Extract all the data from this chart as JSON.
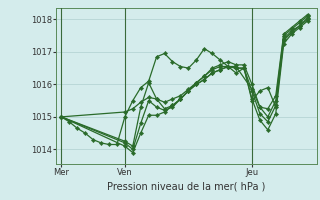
{
  "title": "Pression niveau de la mer( hPa )",
  "ylabel_ticks": [
    1014,
    1015,
    1016,
    1017,
    1018
  ],
  "ylim": [
    1013.55,
    1018.35
  ],
  "bg_color": "#d4ecec",
  "grid_color": "#b0d0d0",
  "line_color": "#2a6b2a",
  "marker_color": "#2a6b2a",
  "day_labels": [
    "Mer",
    "Ven",
    "Jeu"
  ],
  "day_positions": [
    0,
    48,
    144
  ],
  "vline_positions": [
    0,
    48,
    144
  ],
  "xlim": [
    -4,
    193
  ],
  "series": [
    [
      0,
      1015.0,
      6,
      1014.85,
      12,
      1014.65,
      18,
      1014.5,
      24,
      1014.3,
      30,
      1014.2,
      36,
      1014.15,
      42,
      1014.15,
      48,
      1015.0,
      54,
      1015.5,
      60,
      1015.9,
      66,
      1016.1,
      72,
      1016.85,
      78,
      1016.95,
      84,
      1016.7,
      90,
      1016.55,
      96,
      1016.5,
      102,
      1016.75,
      108,
      1017.1,
      114,
      1016.95,
      120,
      1016.75,
      126,
      1016.55,
      132,
      1016.35,
      138,
      1016.5,
      144,
      1015.5,
      150,
      1015.8,
      156,
      1015.9,
      162,
      1015.3,
      168,
      1017.4,
      174,
      1017.65,
      180,
      1017.8,
      186,
      1018.0
    ],
    [
      0,
      1015.0,
      48,
      1014.25,
      54,
      1014.1,
      60,
      1015.3,
      66,
      1016.05,
      72,
      1015.55,
      78,
      1015.25,
      84,
      1015.35,
      90,
      1015.55,
      96,
      1015.8,
      102,
      1016.05,
      108,
      1016.25,
      114,
      1016.5,
      120,
      1016.6,
      126,
      1016.7,
      132,
      1016.6,
      138,
      1016.6,
      144,
      1016.0,
      150,
      1015.3,
      156,
      1015.0,
      162,
      1015.5,
      168,
      1017.5,
      174,
      1017.7,
      180,
      1017.9,
      186,
      1018.1
    ],
    [
      0,
      1015.0,
      48,
      1014.2,
      54,
      1014.0,
      60,
      1014.8,
      66,
      1015.5,
      72,
      1015.3,
      78,
      1015.2,
      84,
      1015.3,
      90,
      1015.55,
      96,
      1015.8,
      102,
      1016.0,
      108,
      1016.15,
      114,
      1016.35,
      120,
      1016.45,
      126,
      1016.55,
      132,
      1016.5,
      138,
      1016.5,
      144,
      1015.8,
      150,
      1015.1,
      156,
      1014.85,
      162,
      1015.35,
      168,
      1017.35,
      174,
      1017.6,
      180,
      1017.8,
      186,
      1018.05
    ],
    [
      0,
      1015.0,
      48,
      1014.1,
      54,
      1013.9,
      60,
      1014.5,
      66,
      1015.05,
      72,
      1015.05,
      78,
      1015.15,
      84,
      1015.35,
      90,
      1015.55,
      96,
      1015.8,
      102,
      1016.0,
      108,
      1016.15,
      114,
      1016.35,
      120,
      1016.45,
      126,
      1016.55,
      132,
      1016.5,
      138,
      1016.5,
      144,
      1015.55,
      150,
      1014.9,
      156,
      1014.6,
      162,
      1015.1,
      168,
      1017.25,
      174,
      1017.55,
      180,
      1017.75,
      186,
      1017.95
    ],
    [
      0,
      1015.0,
      48,
      1015.15,
      54,
      1015.25,
      60,
      1015.45,
      66,
      1015.6,
      72,
      1015.55,
      78,
      1015.45,
      84,
      1015.55,
      90,
      1015.65,
      96,
      1015.85,
      102,
      1016.05,
      108,
      1016.25,
      114,
      1016.45,
      120,
      1016.55,
      126,
      1016.55,
      132,
      1016.55,
      144,
      1015.85,
      150,
      1015.3,
      156,
      1015.25,
      162,
      1015.65,
      168,
      1017.55,
      174,
      1017.75,
      180,
      1017.95,
      186,
      1018.15
    ]
  ]
}
